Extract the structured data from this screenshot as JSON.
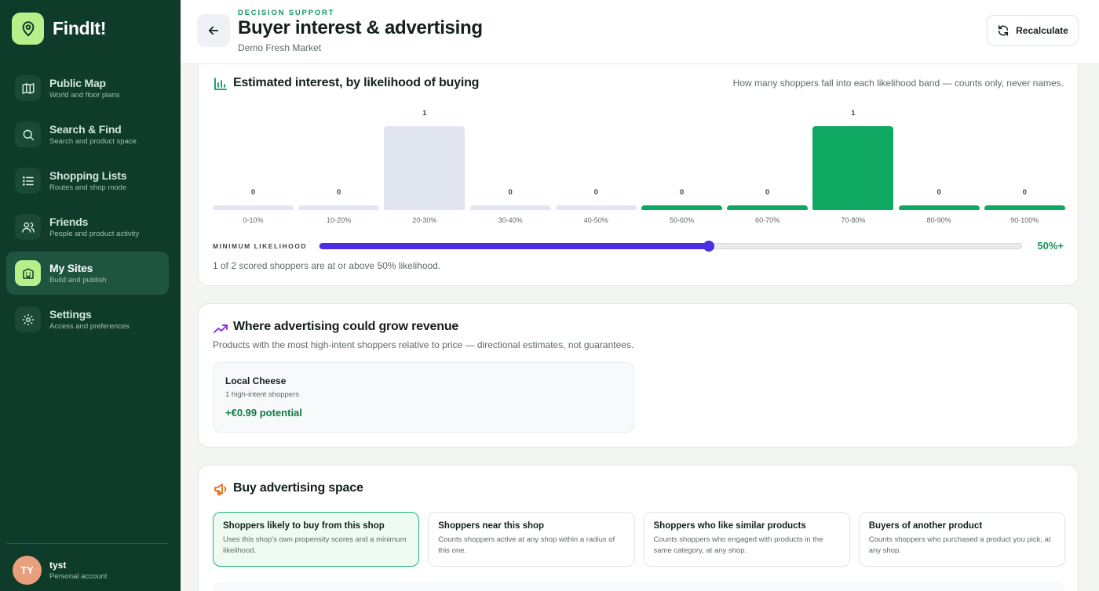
{
  "app": {
    "name": "FindIt!"
  },
  "sidebar": {
    "items": [
      {
        "label": "Public Map",
        "sub": "World and floor plans",
        "icon": "map-icon"
      },
      {
        "label": "Search & Find",
        "sub": "Search and product space",
        "icon": "search-icon"
      },
      {
        "label": "Shopping Lists",
        "sub": "Routes and shop mode",
        "icon": "list-icon"
      },
      {
        "label": "Friends",
        "sub": "People and product activity",
        "icon": "friends-icon"
      },
      {
        "label": "My Sites",
        "sub": "Build and publish",
        "icon": "building-icon",
        "active": true
      },
      {
        "label": "Settings",
        "sub": "Access and preferences",
        "icon": "gear-icon"
      }
    ],
    "account": {
      "initials": "TY",
      "name": "tyst",
      "type": "Personal account"
    }
  },
  "header": {
    "eyebrow": "DECISION SUPPORT",
    "title": "Buyer interest & advertising",
    "subtitle": "Demo Fresh Market",
    "recalculate_label": "Recalculate"
  },
  "interest": {
    "title": "Estimated interest, by likelihood of buying",
    "note": "How many shoppers fall into each likelihood band — counts only, never names.",
    "slider_label": "MINIMUM LIKELIHOOD",
    "slider_value_text": "50%+",
    "slider_value": 50,
    "summary": "1 of 2 scored shoppers are at or above 50% likelihood."
  },
  "chart_data": {
    "type": "bar",
    "categories": [
      "0-10%",
      "10-20%",
      "20-30%",
      "30-40%",
      "40-50%",
      "50-60%",
      "60-70%",
      "70-80%",
      "80-90%",
      "90-100%"
    ],
    "values": [
      0,
      0,
      1,
      0,
      0,
      0,
      0,
      1,
      0,
      0
    ],
    "threshold": 50,
    "colors": {
      "below": "#e1e6f0",
      "above": "#0ea862"
    },
    "grid": false,
    "legend": "none"
  },
  "revenue": {
    "title": "Where advertising could grow revenue",
    "desc": "Products with the most high-intent shoppers relative to price — directional estimates, not guarantees.",
    "items": [
      {
        "name": "Local Cheese",
        "sub": "1 high-intent shoppers",
        "potential": "+€0.99 potential"
      }
    ]
  },
  "ads": {
    "title": "Buy advertising space",
    "options": [
      {
        "title": "Shoppers likely to buy from this shop",
        "desc": "Uses this shop's own propensity scores and a minimum likelihood.",
        "selected": true
      },
      {
        "title": "Shoppers near this shop",
        "desc": "Counts shoppers active at any shop within a radius of this one.",
        "selected": false
      },
      {
        "title": "Shoppers who like similar products",
        "desc": "Counts shoppers who engaged with products in the same category, at any shop.",
        "selected": false
      },
      {
        "title": "Buyers of another product",
        "desc": "Counts shoppers who purchased a product you pick, at any shop.",
        "selected": false
      }
    ]
  },
  "colors": {
    "sidebar": "#0f3b2a",
    "accent": "#b7f08a",
    "green": "#0ea862",
    "purple": "#4a2ee0",
    "orange": "#e0701f"
  }
}
